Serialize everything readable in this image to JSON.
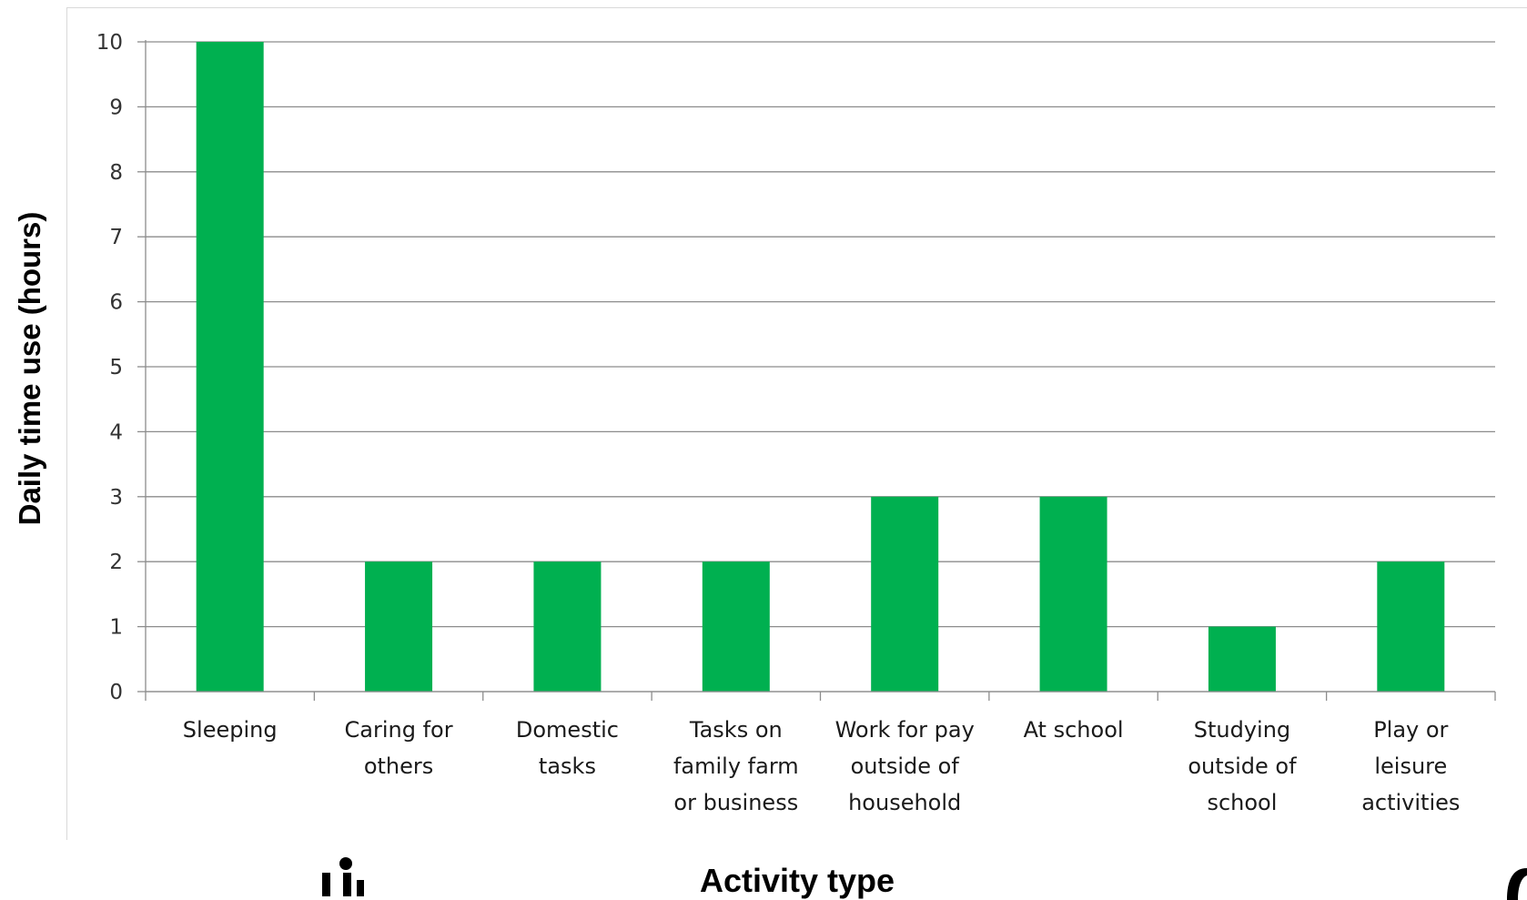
{
  "chart_data": {
    "type": "bar",
    "categories": [
      [
        "Sleeping"
      ],
      [
        "Caring for",
        "others"
      ],
      [
        "Domestic",
        "tasks"
      ],
      [
        "Tasks on",
        "family farm",
        "or business"
      ],
      [
        "Work for pay",
        "outside of",
        "household"
      ],
      [
        "At school"
      ],
      [
        "Studying",
        "outside of",
        "school"
      ],
      [
        "Play or",
        "leisure",
        "activities"
      ]
    ],
    "values": [
      10,
      2,
      2,
      2,
      3,
      3,
      1,
      2
    ],
    "title": "",
    "xlabel": "Activity type",
    "ylabel": "Daily time use (hours)",
    "ylim": [
      0,
      10
    ],
    "yticks": [
      0,
      1,
      2,
      3,
      4,
      5,
      6,
      7,
      8,
      9,
      10
    ],
    "grid": true,
    "legend": "none",
    "colors": {
      "bar": "#00b050",
      "grid": "#8c8c8c",
      "axis": "#8c8c8c"
    }
  }
}
